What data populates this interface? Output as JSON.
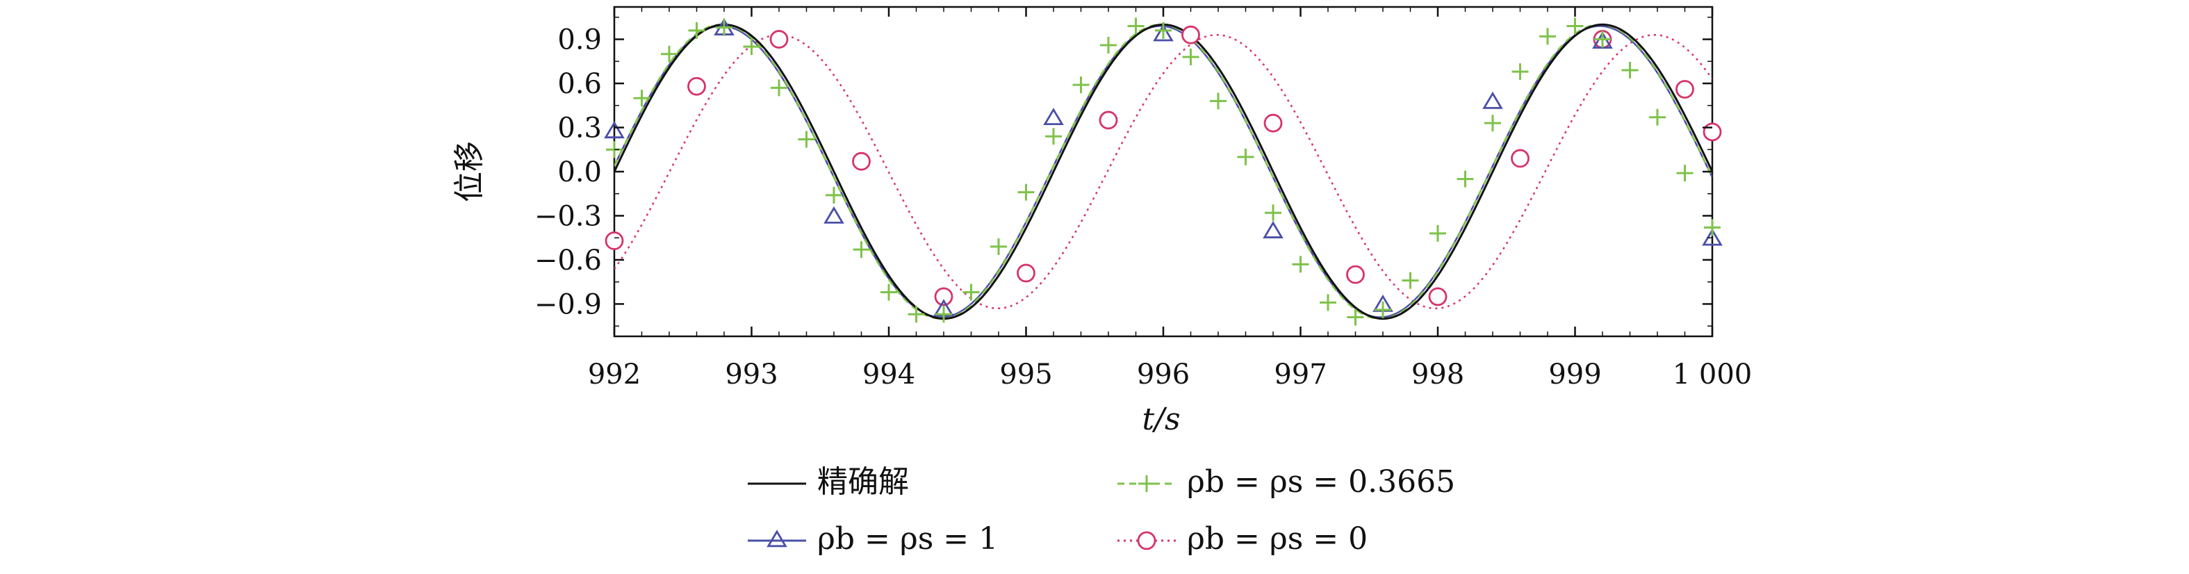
{
  "chart_data": {
    "type": "line",
    "xlabel": "t/s",
    "ylabel": "位移",
    "xlim": [
      992,
      1000
    ],
    "ylim": [
      -1.12,
      1.12
    ],
    "xticks": [
      992,
      993,
      994,
      995,
      996,
      997,
      998,
      999,
      1000
    ],
    "xtick_labels": [
      "992",
      "993",
      "994",
      "995",
      "996",
      "997",
      "998",
      "999",
      "1 000"
    ],
    "yticks": [
      0.9,
      0.6,
      0.3,
      0.0,
      -0.3,
      -0.6,
      -0.9
    ],
    "ytick_labels": [
      "0.9",
      "0.6",
      "0.3",
      "0.0",
      "−0.3",
      "−0.6",
      "−0.9"
    ],
    "grid": false,
    "legend_position": "below",
    "series": [
      {
        "name": "精确解",
        "style": "solid",
        "color": "#111111",
        "marker": "none",
        "amplitude": 1.0,
        "period": 3.2,
        "peak_time": 992.8
      },
      {
        "name": "ρb = ρs = 1",
        "style": "solid",
        "color": "#4b4fa6",
        "marker": "triangle",
        "amplitude": 0.99,
        "period": 3.2,
        "peak_time": 992.78,
        "points": {
          "x": [
            992.0,
            992.8,
            993.6,
            994.4,
            995.2,
            996.0,
            996.8,
            997.6,
            998.4,
            999.2,
            1000.0
          ],
          "y": [
            0.27,
            0.97,
            -0.31,
            -0.94,
            0.36,
            0.93,
            -0.41,
            -0.91,
            0.47,
            0.88,
            -0.46
          ]
        }
      },
      {
        "name": "ρb = ρs = 0.3665",
        "style": "dashed",
        "color": "#7ec24a",
        "marker": "plus",
        "amplitude": 1.0,
        "period": 3.2,
        "peak_time": 992.78,
        "points": {
          "x": [
            992.0,
            992.2,
            992.4,
            992.6,
            992.8,
            993.0,
            993.2,
            993.4,
            993.6,
            993.8,
            994.0,
            994.2,
            994.4,
            994.6,
            994.8,
            995.0,
            995.2,
            995.4,
            995.6,
            995.8,
            996.0,
            996.2,
            996.4,
            996.6,
            996.8,
            997.0,
            997.2,
            997.4,
            997.6,
            997.8,
            998.0,
            998.2,
            998.4,
            998.6,
            998.8,
            999.0,
            999.2,
            999.4,
            999.6,
            999.8,
            1000.0
          ],
          "y": [
            0.15,
            0.5,
            0.8,
            0.96,
            0.98,
            0.85,
            0.57,
            0.22,
            -0.16,
            -0.53,
            -0.82,
            -0.97,
            -0.97,
            -0.82,
            -0.51,
            -0.14,
            0.24,
            0.59,
            0.86,
            0.99,
            0.96,
            0.78,
            0.48,
            0.1,
            -0.28,
            -0.63,
            -0.89,
            -0.99,
            -0.94,
            -0.74,
            -0.42,
            -0.05,
            0.33,
            0.68,
            0.92,
            0.99,
            0.9,
            0.69,
            0.37,
            -0.01,
            -0.38
          ]
        }
      },
      {
        "name": "ρb = ρs = 0",
        "style": "dotted",
        "color": "#d6336c",
        "marker": "circle",
        "amplitude": 0.93,
        "period": 3.19,
        "peak_time": 993.2,
        "points": {
          "x": [
            992.0,
            992.6,
            993.2,
            993.8,
            994.4,
            995.0,
            995.6,
            996.2,
            996.8,
            997.4,
            998.0,
            998.6,
            999.2,
            999.8,
            1000.0
          ],
          "y": [
            -0.47,
            0.58,
            0.9,
            0.07,
            -0.85,
            -0.69,
            0.35,
            0.93,
            0.33,
            -0.7,
            -0.85,
            0.09,
            0.9,
            0.56,
            0.27
          ]
        }
      }
    ]
  }
}
